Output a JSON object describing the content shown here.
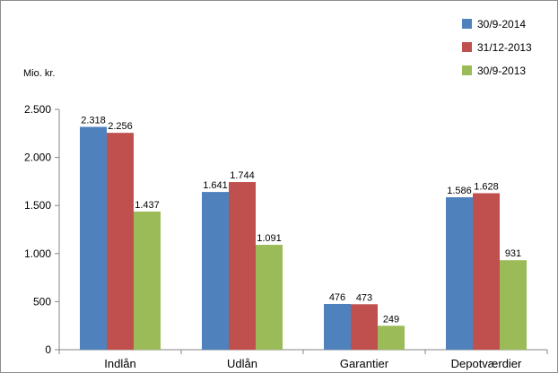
{
  "chart_data": {
    "type": "bar",
    "title": "",
    "xlabel": "",
    "ylabel": "Mio. kr.",
    "categories": [
      "Indlån",
      "Udlån",
      "Garantier",
      "Depotværdier"
    ],
    "series": [
      {
        "name": "30/9-2014",
        "color": "#4f81bd",
        "values": [
          2318,
          1641,
          476,
          1586
        ],
        "labels": [
          "2.318",
          "1.641",
          "476",
          "1.586"
        ]
      },
      {
        "name": "31/12-2013",
        "color": "#c0504d",
        "values": [
          2256,
          1744,
          473,
          1628
        ],
        "labels": [
          "2.256",
          "1.744",
          "473",
          "1.628"
        ]
      },
      {
        "name": "30/9-2013",
        "color": "#9bbb59",
        "values": [
          1437,
          1091,
          249,
          931
        ],
        "labels": [
          "1.437",
          "1.091",
          "249",
          "931"
        ]
      }
    ],
    "ylim": [
      0,
      2500
    ],
    "yticks": [
      0,
      500,
      1000,
      1500,
      2000,
      2500
    ],
    "ytick_labels": [
      "0",
      "500",
      "1.000",
      "1.500",
      "2.000",
      "2.500"
    ],
    "grid": false,
    "legend": "top-right"
  }
}
